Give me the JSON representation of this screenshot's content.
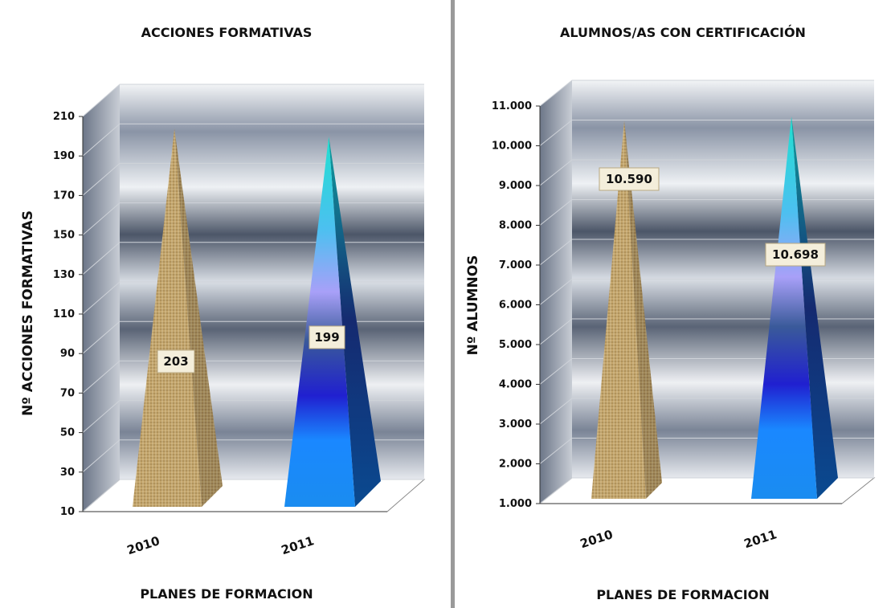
{
  "colors": {
    "wall_dark": "#4a5566",
    "wall_light": "#eef1f4",
    "floor": "#ffffff",
    "label_bg": "#f4eedb",
    "label_border": "#b8a882",
    "pyramid_2010": "#c4a56b",
    "pyramid_2011_top": "#1fd8d0",
    "pyramid_2011_mid": "#2233cc",
    "pyramid_2011_bottom": "#1a8cff"
  },
  "chart_data": [
    {
      "type": "bar",
      "style": "3d-pyramid",
      "title": "ACCIONES FORMATIVAS",
      "xlabel": "PLANES DE FORMACION",
      "ylabel": "Nº  ACCIONES FORMATIVAS",
      "categories": [
        "2010",
        "2011"
      ],
      "values": [
        203,
        199
      ],
      "data_labels": [
        "203",
        "199"
      ],
      "yticks": [
        "10",
        "30",
        "50",
        "70",
        "90",
        "110",
        "130",
        "150",
        "170",
        "190",
        "210"
      ],
      "ylim": [
        10,
        210
      ],
      "grid": true,
      "legend": "none"
    },
    {
      "type": "bar",
      "style": "3d-pyramid",
      "title": "ALUMNOS/AS CON CERTIFICACIÓN",
      "xlabel": "PLANES DE FORMACION",
      "ylabel": "Nº ALUMNOS",
      "categories": [
        "2010",
        "2011"
      ],
      "values": [
        10590,
        10698
      ],
      "data_labels": [
        "10.590",
        "10.698"
      ],
      "yticks": [
        "1.000",
        "2.000",
        "3.000",
        "4.000",
        "5.000",
        "6.000",
        "7.000",
        "8.000",
        "9.000",
        "10.000",
        "11.000"
      ],
      "ylim": [
        1000,
        11000
      ],
      "grid": true,
      "legend": "none"
    }
  ]
}
